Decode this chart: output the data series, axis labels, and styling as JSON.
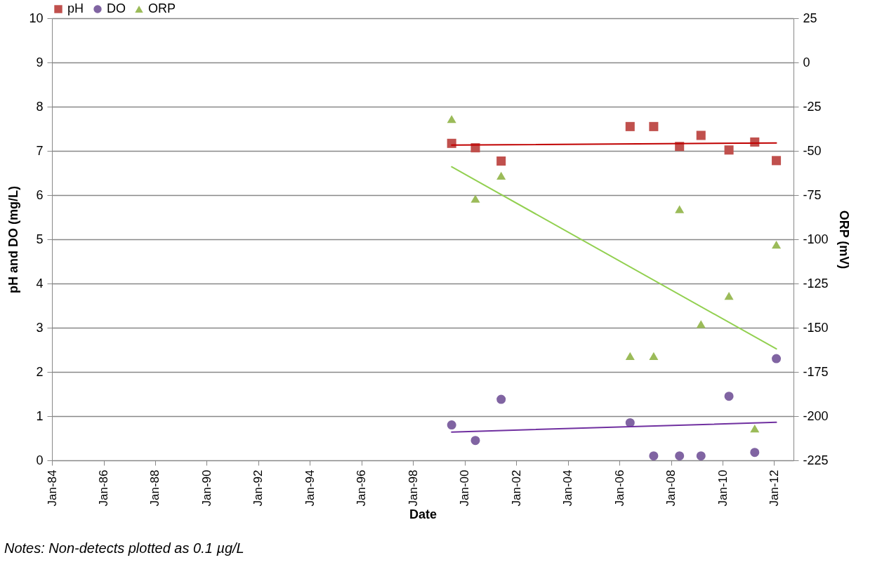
{
  "chart_data": {
    "type": "scatter",
    "xlabel": "Date",
    "ylabel": "pH and DO (mg/L)",
    "y2label": "ORP (mV)",
    "x": [
      "1999-07",
      "2000-06",
      "2001-06",
      "2006-06",
      "2007-05",
      "2008-05",
      "2009-03",
      "2010-04",
      "2011-04",
      "2012-02"
    ],
    "xlim": [
      "1984-01",
      "2012-10"
    ],
    "xticks": [
      {
        "value": "1984-01",
        "label": "Jan-84"
      },
      {
        "value": "1986-01",
        "label": "Jan-86"
      },
      {
        "value": "1988-01",
        "label": "Jan-88"
      },
      {
        "value": "1990-01",
        "label": "Jan-90"
      },
      {
        "value": "1992-01",
        "label": "Jan-92"
      },
      {
        "value": "1994-01",
        "label": "Jan-94"
      },
      {
        "value": "1996-01",
        "label": "Jan-96"
      },
      {
        "value": "1998-01",
        "label": "Jan-98"
      },
      {
        "value": "2000-01",
        "label": "Jan-00"
      },
      {
        "value": "2002-01",
        "label": "Jan-02"
      },
      {
        "value": "2004-01",
        "label": "Jan-04"
      },
      {
        "value": "2006-01",
        "label": "Jan-06"
      },
      {
        "value": "2008-01",
        "label": "Jan-08"
      },
      {
        "value": "2010-01",
        "label": "Jan-10"
      },
      {
        "value": "2012-01",
        "label": "Jan-12"
      }
    ],
    "ylim": [
      0,
      10
    ],
    "yticks": [
      0,
      1,
      2,
      3,
      4,
      5,
      6,
      7,
      8,
      9,
      10
    ],
    "y2lim": [
      -225,
      25
    ],
    "y2ticks": [
      -225,
      -200,
      -175,
      -150,
      -125,
      -100,
      -75,
      -50,
      -25,
      0,
      25
    ],
    "grid": "y",
    "legend": "top",
    "series": [
      {
        "name": "pH",
        "color": "#c0504d",
        "marker": "square",
        "values": [
          7.17,
          7.07,
          6.77,
          7.55,
          7.55,
          7.1,
          7.35,
          7.02,
          7.2,
          6.78
        ]
      },
      {
        "name": "DO",
        "color": "#8064a2",
        "marker": "circle",
        "values": [
          0.8,
          0.45,
          1.38,
          0.85,
          0.1,
          0.1,
          0.1,
          1.45,
          0.18,
          2.3
        ]
      },
      {
        "name": "ORP",
        "color": "#9bbb59",
        "marker": "triangle",
        "axis": "y2",
        "values": [
          -32,
          -77,
          -64,
          -166,
          -166,
          -83,
          -148,
          -132,
          -207,
          -103
        ]
      },
      {
        "type": "line",
        "color": "#c00000",
        "x": [
          "1999-07",
          "2012-02"
        ],
        "values": [
          7.13,
          7.18
        ]
      },
      {
        "type": "line",
        "color": "#7030a0",
        "x": [
          "1999-07",
          "2012-02"
        ],
        "values": [
          0.64,
          0.86
        ]
      },
      {
        "type": "line",
        "color": "#92d050",
        "axis": "y2",
        "x": [
          "1999-07",
          "2012-02"
        ],
        "values": [
          -59,
          -162
        ]
      }
    ],
    "annotations": [
      "Notes: Non-detects plotted as 0.1  µg/L"
    ]
  }
}
